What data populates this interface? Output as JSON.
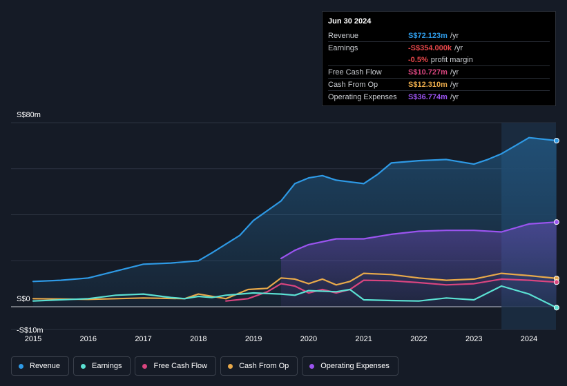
{
  "tooltip": {
    "date": "Jun 30 2024",
    "rows": [
      {
        "label": "Revenue",
        "value": "S$72.123m",
        "unit": "/yr",
        "color": "#2e9ae6"
      },
      {
        "label": "Earnings",
        "value": "-S$354.000k",
        "unit": "/yr",
        "color": "#e8474a"
      },
      {
        "label": "",
        "value": "-0.5%",
        "unit": "profit margin",
        "color": "#e8474a"
      },
      {
        "label": "Free Cash Flow",
        "value": "S$10.727m",
        "unit": "/yr",
        "color": "#d9457f"
      },
      {
        "label": "Cash From Op",
        "value": "S$12.310m",
        "unit": "/yr",
        "color": "#e8a94a"
      },
      {
        "label": "Operating Expenses",
        "value": "S$36.774m",
        "unit": "/yr",
        "color": "#9b54f0"
      }
    ]
  },
  "legend": [
    {
      "label": "Revenue",
      "color": "#2e9ae6"
    },
    {
      "label": "Earnings",
      "color": "#5be1d3"
    },
    {
      "label": "Free Cash Flow",
      "color": "#d9457f"
    },
    {
      "label": "Cash From Op",
      "color": "#e8a94a"
    },
    {
      "label": "Operating Expenses",
      "color": "#9b54f0"
    }
  ],
  "chart_data": {
    "type": "line",
    "ylim": [
      -10,
      80
    ],
    "xlim": [
      2014.7,
      2024.5
    ],
    "y_axis_labels": [
      "S$80m",
      "S$0",
      "-S$10m"
    ],
    "y_axis_values": [
      80,
      0,
      -10
    ],
    "x_ticks": [
      2015,
      2016,
      2017,
      2018,
      2019,
      2020,
      2021,
      2022,
      2023,
      2024
    ],
    "x_tick_labels": [
      "2015",
      "2016",
      "2017",
      "2018",
      "2019",
      "2020",
      "2021",
      "2022",
      "2023",
      "2024"
    ],
    "highlight_start": 2023.5,
    "series": [
      {
        "name": "Revenue",
        "color": "#2e9ae6",
        "fill": true,
        "points": [
          [
            2015,
            11
          ],
          [
            2015.5,
            11.5
          ],
          [
            2016,
            12.5
          ],
          [
            2016.5,
            15.5
          ],
          [
            2017,
            18.5
          ],
          [
            2017.5,
            19
          ],
          [
            2018,
            20
          ],
          [
            2018.25,
            23.5
          ],
          [
            2018.75,
            31
          ],
          [
            2019,
            37.5
          ],
          [
            2019.5,
            46
          ],
          [
            2019.75,
            53.5
          ],
          [
            2020,
            56
          ],
          [
            2020.25,
            57
          ],
          [
            2020.5,
            55
          ],
          [
            2021,
            53.5
          ],
          [
            2021.25,
            57.5
          ],
          [
            2021.5,
            62.5
          ],
          [
            2022,
            63.5
          ],
          [
            2022.5,
            64
          ],
          [
            2023,
            62
          ],
          [
            2023.25,
            64
          ],
          [
            2023.5,
            66.5
          ],
          [
            2023.75,
            70
          ],
          [
            2024,
            73.5
          ],
          [
            2024.5,
            72.2
          ]
        ]
      },
      {
        "name": "Operating Expenses",
        "color": "#9b54f0",
        "fill": true,
        "points": [
          [
            2019.5,
            21
          ],
          [
            2019.75,
            24.5
          ],
          [
            2020,
            27
          ],
          [
            2020.5,
            29.5
          ],
          [
            2021,
            29.5
          ],
          [
            2021.5,
            31.5
          ],
          [
            2022,
            32.8
          ],
          [
            2022.5,
            33.2
          ],
          [
            2023,
            33.2
          ],
          [
            2023.5,
            32.5
          ],
          [
            2024,
            36
          ],
          [
            2024.5,
            36.8
          ]
        ]
      },
      {
        "name": "Cash From Op",
        "color": "#e8a94a",
        "fill": false,
        "points": [
          [
            2015,
            3.5
          ],
          [
            2016,
            3.2
          ],
          [
            2017,
            3.8
          ],
          [
            2017.75,
            3.5
          ],
          [
            2018,
            5.5
          ],
          [
            2018.5,
            3.5
          ],
          [
            2018.9,
            7.5
          ],
          [
            2019.25,
            8
          ],
          [
            2019.5,
            12.5
          ],
          [
            2019.75,
            12
          ],
          [
            2020,
            10
          ],
          [
            2020.25,
            12
          ],
          [
            2020.5,
            9.5
          ],
          [
            2020.75,
            11
          ],
          [
            2021,
            14.5
          ],
          [
            2021.5,
            14
          ],
          [
            2022,
            12.5
          ],
          [
            2022.5,
            11.5
          ],
          [
            2023,
            12
          ],
          [
            2023.5,
            14.5
          ],
          [
            2024,
            13.5
          ],
          [
            2024.5,
            12.3
          ]
        ]
      },
      {
        "name": "Free Cash Flow",
        "color": "#d9457f",
        "fill": false,
        "points": [
          [
            2018.5,
            2.5
          ],
          [
            2018.9,
            3.5
          ],
          [
            2019.25,
            6.5
          ],
          [
            2019.5,
            10
          ],
          [
            2019.75,
            9
          ],
          [
            2020,
            6
          ],
          [
            2020.25,
            7.5
          ],
          [
            2020.5,
            6
          ],
          [
            2020.75,
            7.5
          ],
          [
            2021,
            11.5
          ],
          [
            2021.5,
            11.3
          ],
          [
            2022,
            10.5
          ],
          [
            2022.5,
            9.5
          ],
          [
            2023,
            10
          ],
          [
            2023.5,
            12
          ],
          [
            2024,
            11.5
          ],
          [
            2024.5,
            10.7
          ]
        ]
      },
      {
        "name": "Earnings",
        "color": "#5be1d3",
        "fill": false,
        "points": [
          [
            2015,
            2.5
          ],
          [
            2016,
            3.5
          ],
          [
            2016.5,
            5
          ],
          [
            2017,
            5.5
          ],
          [
            2017.5,
            4
          ],
          [
            2017.75,
            3.5
          ],
          [
            2018,
            4.5
          ],
          [
            2018.25,
            4
          ],
          [
            2018.5,
            5
          ],
          [
            2019,
            6
          ],
          [
            2019.5,
            5.5
          ],
          [
            2019.75,
            5
          ],
          [
            2020,
            7
          ],
          [
            2020.5,
            6.5
          ],
          [
            2020.75,
            7.5
          ],
          [
            2021,
            3
          ],
          [
            2021.5,
            2.7
          ],
          [
            2022,
            2.5
          ],
          [
            2022.5,
            3.8
          ],
          [
            2023,
            3
          ],
          [
            2023.5,
            9
          ],
          [
            2024,
            5.5
          ],
          [
            2024.5,
            -0.4
          ]
        ]
      }
    ]
  }
}
